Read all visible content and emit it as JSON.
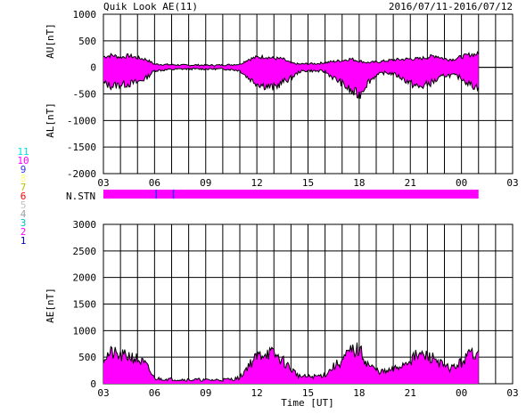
{
  "header": {
    "title": "Quik Look AE(11)",
    "date_range": "2016/07/11-2016/07/12"
  },
  "colors": {
    "fill": "#ff00ff",
    "line": "#000000",
    "grid": "#000000",
    "background": "#ffffff",
    "nstn_marker": "#3030ff"
  },
  "station_legend": {
    "items": [
      {
        "label": "11",
        "color": "#00e0e0"
      },
      {
        "label": "10",
        "color": "#ff00ff"
      },
      {
        "label": "9",
        "color": "#3030ff"
      },
      {
        "label": "8",
        "color": "#ffff80"
      },
      {
        "label": "7",
        "color": "#c0c000"
      },
      {
        "label": "6",
        "color": "#ff0000"
      },
      {
        "label": "5",
        "color": "#c0c0c0"
      },
      {
        "label": "4",
        "color": "#a0a0a0"
      },
      {
        "label": "3",
        "color": "#00c0c0"
      },
      {
        "label": "2",
        "color": "#ff00ff"
      },
      {
        "label": "1",
        "color": "#0000c0"
      }
    ]
  },
  "nstn": {
    "label": "N.STN",
    "x_range": [
      0,
      22
    ],
    "markers": [
      3.1,
      4.1
    ]
  },
  "chart_data": [
    {
      "type": "area",
      "name": "au-al-panel",
      "ylabel_top": "AU[nT]",
      "ylabel_bottom": "AL[nT]",
      "xlim": [
        0,
        24
      ],
      "ylim": [
        -2000,
        1000
      ],
      "yticks": [
        1000,
        500,
        0,
        -500,
        -1000,
        -1500,
        -2000
      ],
      "xticks": [
        0,
        3,
        6,
        9,
        12,
        15,
        18,
        21,
        24
      ],
      "xtick_labels": [
        "03",
        "06",
        "09",
        "12",
        "15",
        "18",
        "21",
        "00",
        "03"
      ],
      "x_hours_since_03UT": [
        0,
        0.5,
        1,
        1.5,
        2,
        2.5,
        3,
        3.5,
        4,
        4.5,
        5,
        5.5,
        6,
        6.5,
        7,
        7.5,
        8,
        8.5,
        9,
        9.5,
        10,
        10.5,
        11,
        11.5,
        12,
        12.5,
        13,
        13.5,
        14,
        14.5,
        15,
        15.5,
        16,
        16.5,
        17,
        17.5,
        18,
        18.5,
        19,
        19.5,
        20,
        20.5,
        21,
        21.5,
        22
      ],
      "au": [
        200,
        230,
        190,
        220,
        180,
        150,
        60,
        55,
        50,
        45,
        40,
        45,
        40,
        40,
        45,
        50,
        60,
        150,
        190,
        200,
        170,
        160,
        80,
        60,
        70,
        70,
        90,
        110,
        130,
        160,
        120,
        90,
        100,
        120,
        140,
        150,
        160,
        160,
        190,
        220,
        160,
        150,
        200,
        240,
        250
      ],
      "al": [
        -300,
        -350,
        -320,
        -310,
        -280,
        -200,
        -60,
        -50,
        -40,
        -30,
        -30,
        -30,
        -30,
        -30,
        -30,
        -40,
        -60,
        -200,
        -300,
        -350,
        -380,
        -280,
        -200,
        -80,
        -60,
        -70,
        -80,
        -200,
        -300,
        -450,
        -520,
        -280,
        -150,
        -100,
        -120,
        -200,
        -300,
        -380,
        -320,
        -250,
        -150,
        -150,
        -200,
        -320,
        -380
      ]
    },
    {
      "type": "area",
      "name": "ae-panel",
      "ylabel": "AE[nT]",
      "xlabel": "Time [UT]",
      "xlim": [
        0,
        24
      ],
      "ylim": [
        0,
        3000
      ],
      "yticks": [
        3000,
        2500,
        2000,
        1500,
        1000,
        500,
        0
      ],
      "xticks": [
        0,
        3,
        6,
        9,
        12,
        15,
        18,
        21,
        24
      ],
      "xtick_labels": [
        "03",
        "06",
        "09",
        "12",
        "15",
        "18",
        "21",
        "00",
        "03"
      ],
      "x_hours_since_03UT": [
        0,
        0.5,
        1,
        1.5,
        2,
        2.5,
        3,
        3.5,
        4,
        4.5,
        5,
        5.5,
        6,
        6.5,
        7,
        7.5,
        8,
        8.5,
        9,
        9.5,
        10,
        10.5,
        11,
        11.5,
        12,
        12.5,
        13,
        13.5,
        14,
        14.5,
        15,
        15.5,
        16,
        16.5,
        17,
        17.5,
        18,
        18.5,
        19,
        19.5,
        20,
        20.5,
        21,
        21.5,
        22
      ],
      "ae": [
        500,
        580,
        510,
        530,
        460,
        350,
        100,
        90,
        85,
        80,
        75,
        75,
        70,
        70,
        75,
        85,
        110,
        350,
        500,
        600,
        550,
        440,
        280,
        140,
        130,
        140,
        170,
        320,
        430,
        610,
        640,
        370,
        250,
        220,
        260,
        350,
        460,
        540,
        510,
        470,
        310,
        300,
        400,
        560,
        630
      ]
    }
  ]
}
